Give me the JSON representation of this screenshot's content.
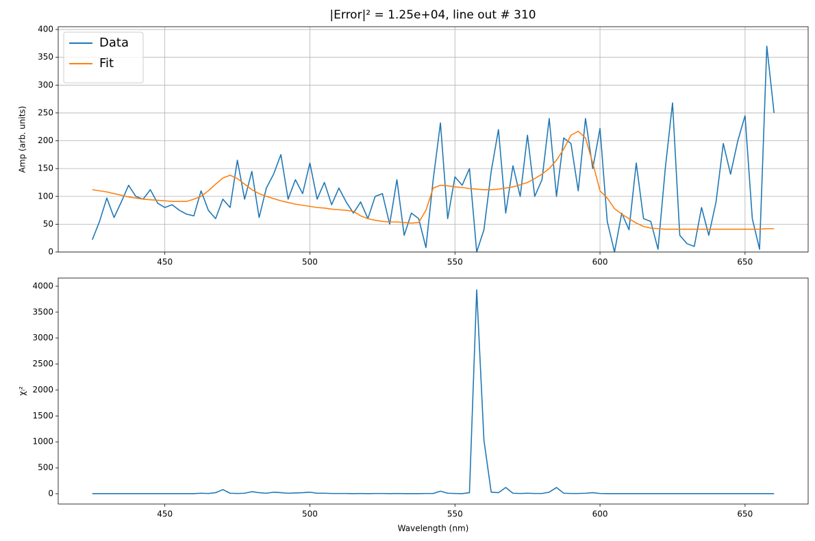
{
  "chart_data": [
    {
      "type": "line",
      "title": "|Error|² = 1.25e+04, line out # 310",
      "ylabel": "Amp (arb. units)",
      "x": [
        425,
        427.5,
        430,
        432.5,
        435,
        437.5,
        440,
        442.5,
        445,
        447.5,
        450,
        452.5,
        455,
        457.5,
        460,
        462.5,
        465,
        467.5,
        470,
        472.5,
        475,
        477.5,
        480,
        482.5,
        485,
        487.5,
        490,
        492.5,
        495,
        497.5,
        500,
        502.5,
        505,
        507.5,
        510,
        512.5,
        515,
        517.5,
        520,
        522.5,
        525,
        527.5,
        530,
        532.5,
        535,
        537.5,
        540,
        542.5,
        545,
        547.5,
        550,
        552.5,
        555,
        557.5,
        560,
        562.5,
        565,
        567.5,
        570,
        572.5,
        575,
        577.5,
        580,
        582.5,
        585,
        587.5,
        590,
        592.5,
        595,
        597.5,
        600,
        602.5,
        605,
        607.5,
        610,
        612.5,
        615,
        617.5,
        620,
        622.5,
        625,
        627.5,
        630,
        632.5,
        635,
        637.5,
        640,
        642.5,
        645,
        647.5,
        650,
        652.5,
        655,
        657.5,
        660
      ],
      "series": [
        {
          "name": "Data",
          "color": "#1f77b4",
          "values": [
            22,
            55,
            97,
            62,
            90,
            120,
            100,
            95,
            112,
            88,
            80,
            85,
            75,
            68,
            65,
            110,
            75,
            60,
            95,
            80,
            165,
            95,
            145,
            62,
            115,
            140,
            175,
            95,
            130,
            105,
            160,
            95,
            125,
            85,
            115,
            90,
            70,
            90,
            60,
            100,
            105,
            50,
            130,
            30,
            70,
            60,
            8,
            130,
            232,
            60,
            135,
            120,
            150,
            0,
            40,
            145,
            220,
            70,
            155,
            100,
            210,
            100,
            130,
            240,
            100,
            205,
            195,
            110,
            240,
            150,
            222,
            55,
            0,
            70,
            40,
            160,
            60,
            55,
            5,
            150,
            268,
            30,
            15,
            10,
            80,
            30,
            90,
            195,
            140,
            200,
            245,
            60,
            5,
            370,
            250
          ]
        },
        {
          "name": "Fit",
          "color": "#ff7f0e",
          "values": [
            112,
            110,
            108,
            105,
            102,
            99,
            97,
            95,
            94,
            93,
            92,
            91,
            91,
            91,
            95,
            100,
            110,
            122,
            133,
            138,
            132,
            122,
            112,
            105,
            100,
            96,
            92,
            89,
            86,
            84,
            82,
            80,
            79,
            77,
            76,
            75,
            73,
            65,
            60,
            57,
            55,
            54,
            54,
            53,
            52,
            53,
            75,
            115,
            120,
            119,
            117,
            116,
            114,
            113,
            112,
            112,
            113,
            115,
            117,
            121,
            125,
            132,
            140,
            150,
            165,
            185,
            210,
            217,
            205,
            160,
            110,
            97,
            78,
            68,
            60,
            52,
            46,
            43,
            42,
            41,
            41,
            41,
            41,
            41,
            41,
            41,
            41,
            41,
            41,
            41,
            41,
            41,
            41,
            42,
            42
          ]
        }
      ],
      "xlim": [
        413.25,
        671.75
      ],
      "ylim": [
        0,
        405
      ],
      "xticks": [
        450,
        500,
        550,
        600,
        650
      ],
      "yticks": [
        0,
        50,
        100,
        150,
        200,
        250,
        300,
        350,
        400
      ],
      "grid": true,
      "legend": "upper left"
    },
    {
      "type": "line",
      "xlabel": "Wavelength (nm)",
      "ylabel": "χᵢ²",
      "x": [
        425,
        427.5,
        430,
        432.5,
        435,
        437.5,
        440,
        442.5,
        445,
        447.5,
        450,
        452.5,
        455,
        457.5,
        460,
        462.5,
        465,
        467.5,
        470,
        472.5,
        475,
        477.5,
        480,
        482.5,
        485,
        487.5,
        490,
        492.5,
        495,
        497.5,
        500,
        502.5,
        505,
        507.5,
        510,
        512.5,
        515,
        517.5,
        520,
        522.5,
        525,
        527.5,
        530,
        532.5,
        535,
        537.5,
        540,
        542.5,
        545,
        547.5,
        550,
        552.5,
        555,
        557.5,
        560,
        562.5,
        565,
        567.5,
        570,
        572.5,
        575,
        577.5,
        580,
        582.5,
        585,
        587.5,
        590,
        592.5,
        595,
        597.5,
        600,
        602.5,
        605,
        607.5,
        610,
        612.5,
        615,
        617.5,
        620,
        622.5,
        625,
        627.5,
        630,
        632.5,
        635,
        637.5,
        640,
        642.5,
        645,
        647.5,
        650,
        652.5,
        655,
        657.5,
        660
      ],
      "color": "#1f77b4",
      "values": [
        2,
        2,
        2,
        2,
        2,
        2,
        2,
        2,
        2,
        2,
        2,
        2,
        2,
        2,
        2,
        10,
        5,
        20,
        80,
        10,
        5,
        10,
        40,
        20,
        10,
        30,
        20,
        10,
        15,
        20,
        30,
        10,
        10,
        5,
        5,
        5,
        2,
        5,
        2,
        5,
        5,
        2,
        5,
        2,
        2,
        2,
        5,
        5,
        50,
        10,
        5,
        2,
        20,
        3930,
        1030,
        30,
        20,
        120,
        10,
        5,
        10,
        5,
        5,
        30,
        120,
        10,
        5,
        5,
        10,
        20,
        5,
        2,
        2,
        2,
        2,
        2,
        2,
        2,
        2,
        2,
        2,
        2,
        2,
        2,
        2,
        2,
        2,
        2,
        2,
        2,
        2,
        2,
        2,
        2,
        2
      ],
      "xlim": [
        413.25,
        671.75
      ],
      "ylim": [
        -198,
        4158
      ],
      "xticks": [
        450,
        500,
        550,
        600,
        650
      ],
      "yticks": [
        0,
        500,
        1000,
        1500,
        2000,
        2500,
        3000,
        3500,
        4000
      ],
      "grid": false
    }
  ]
}
